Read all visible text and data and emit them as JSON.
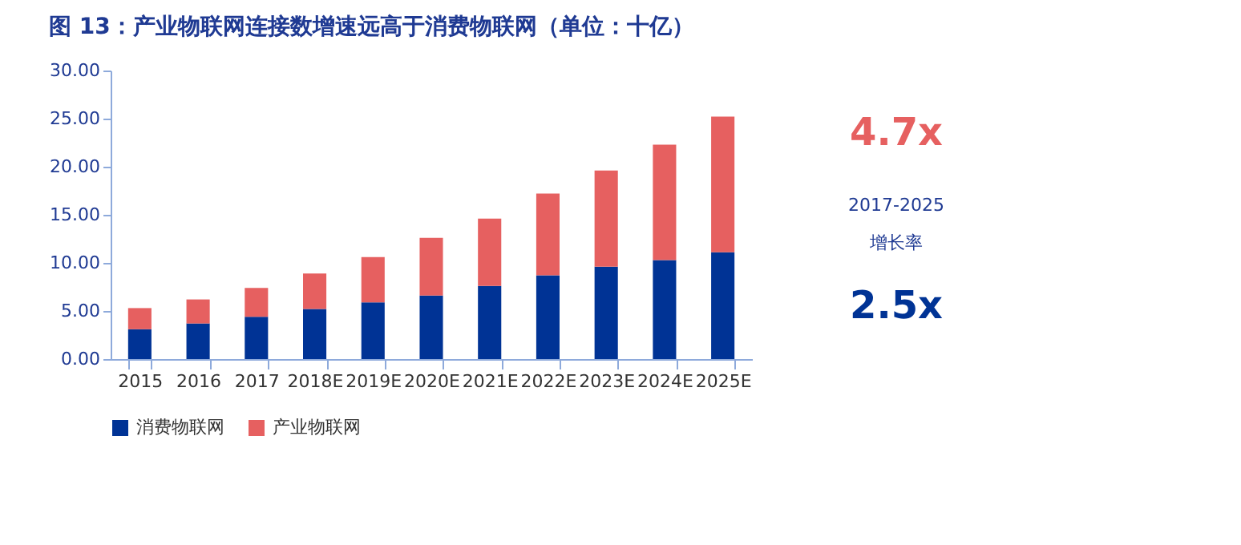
{
  "chart_data": {
    "type": "bar",
    "title": "图 13：产业物联网连接数增速远高于消费物联网（单位：十亿）",
    "categories": [
      "2015",
      "2016",
      "2017",
      "2018E",
      "2019E",
      "2020E",
      "2021E",
      "2022E",
      "2023E",
      "2024E",
      "2025E"
    ],
    "stacked": true,
    "series": [
      {
        "name": "消费物联网",
        "color": "#003395",
        "values": [
          3.1,
          3.7,
          4.4,
          5.2,
          5.9,
          6.6,
          7.6,
          8.7,
          9.6,
          10.3,
          11.1
        ]
      },
      {
        "name": "产业物联网",
        "color": "#e66060",
        "values": [
          2.2,
          2.5,
          3.0,
          3.7,
          4.7,
          6.0,
          7.0,
          8.5,
          10.0,
          12.0,
          14.1
        ]
      }
    ],
    "ylim": [
      0,
      30
    ],
    "yticks": [
      {
        "value": 0,
        "label": "0.00"
      },
      {
        "value": 5,
        "label": "5.00"
      },
      {
        "value": 10,
        "label": "10.00"
      },
      {
        "value": 15,
        "label": "15.00"
      },
      {
        "value": 20,
        "label": "20.00"
      },
      {
        "value": 25,
        "label": "25.00"
      },
      {
        "value": 30,
        "label": "30.00"
      }
    ],
    "grid": false,
    "legend": "bottom",
    "annotations": [
      "4.7x",
      "2017-2025",
      "增长率",
      "2.5x"
    ]
  }
}
